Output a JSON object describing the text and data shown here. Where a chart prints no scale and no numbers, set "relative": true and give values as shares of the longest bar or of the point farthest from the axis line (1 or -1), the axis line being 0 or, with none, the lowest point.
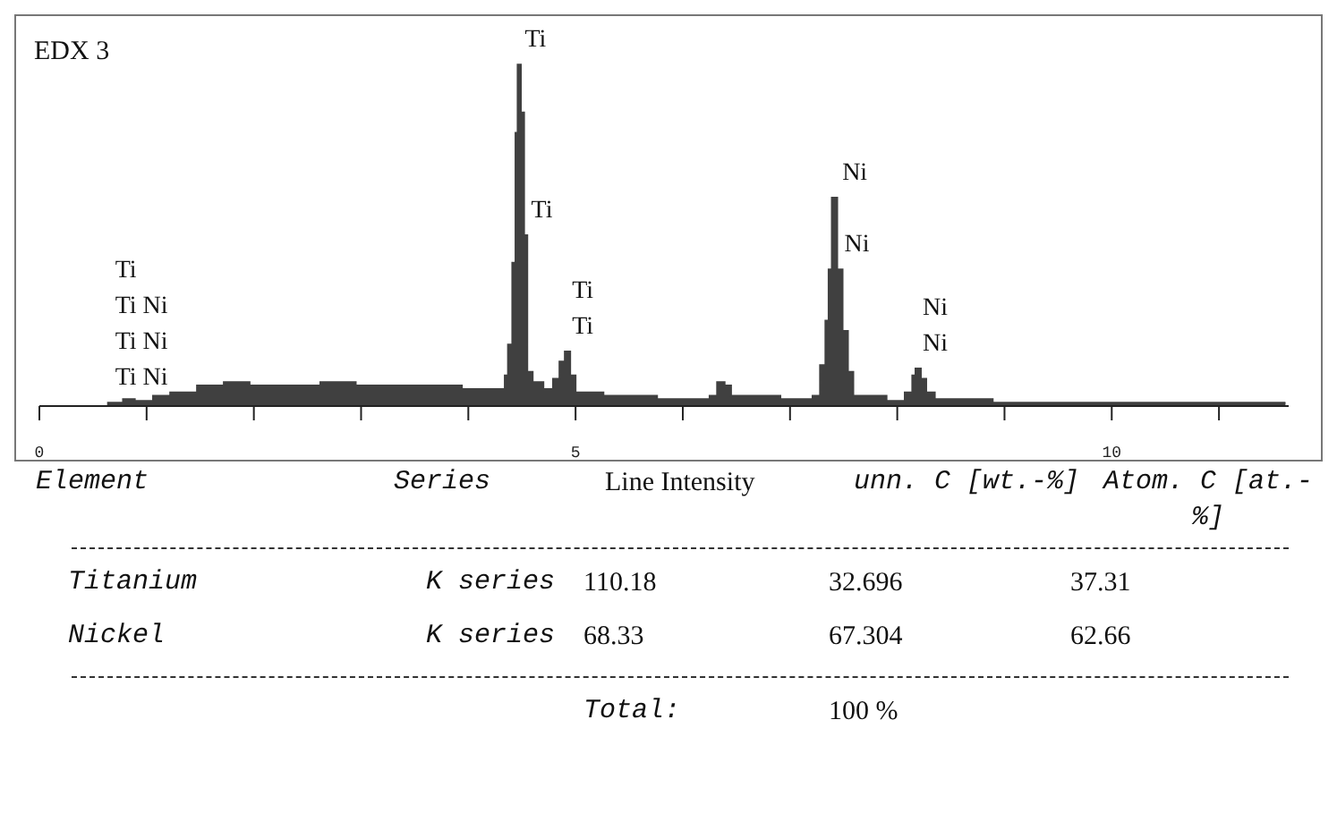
{
  "chart_data": [
    {
      "type": "area",
      "title": "EDX 3",
      "relative": true,
      "tick_labels": "x",
      "grid": false,
      "x": [
        0,
        0.64,
        0.78,
        0.89,
        1.06,
        1.22,
        1.47,
        1.72,
        1.96,
        2.29,
        2.62,
        2.95,
        3.28,
        3.61,
        3.94,
        4.27,
        4.34,
        4.37,
        4.41,
        4.44,
        4.46,
        4.49,
        4.52,
        4.55,
        4.6,
        4.7,
        4.79,
        4.85,
        4.9,
        4.95,
        5,
        5.26,
        5.76,
        6.09,
        6.25,
        6.32,
        6.39,
        6.45,
        6.91,
        7.21,
        7.28,
        7.33,
        7.36,
        7.39,
        7.42,
        7.44,
        7.49,
        7.54,
        7.59,
        7.9,
        8.07,
        8.14,
        8.17,
        8.22,
        8.27,
        8.35,
        8.89,
        9.88,
        11.2,
        11.62
      ],
      "series": [
        {
          "color": "#404040",
          "values": [
            0,
            0.01,
            0.02,
            0.015,
            0.03,
            0.04,
            0.06,
            0.07,
            0.06,
            0.06,
            0.07,
            0.06,
            0.06,
            0.06,
            0.05,
            0.05,
            0.09,
            0.18,
            0.42,
            0.8,
            1,
            0.86,
            0.5,
            0.1,
            0.07,
            0.05,
            0.08,
            0.13,
            0.16,
            0.09,
            0.04,
            0.03,
            0.02,
            0.02,
            0.03,
            0.07,
            0.06,
            0.03,
            0.02,
            0.03,
            0.12,
            0.25,
            0.4,
            0.61,
            0.61,
            0.4,
            0.22,
            0.1,
            0.03,
            0.015,
            0.04,
            0.09,
            0.11,
            0.08,
            0.04,
            0.02,
            0.01,
            0.01,
            0.01,
            0.01
          ]
        }
      ],
      "xlim": [
        0,
        11.65
      ],
      "xticks": [
        0,
        {
          "value": 1,
          "label": null
        },
        {
          "value": 2,
          "label": null
        },
        {
          "value": 3,
          "label": null
        },
        {
          "value": 4,
          "label": null
        },
        5,
        {
          "value": 6,
          "label": null
        },
        {
          "value": 7,
          "label": null
        },
        {
          "value": 8,
          "label": null
        },
        {
          "value": 9,
          "label": null
        },
        10,
        {
          "value": 11,
          "label": null
        }
      ],
      "annotations": [
        {
          "text": "Ti Ni",
          "x": 0.64,
          "y": 0.01
        },
        "Ti Ni",
        "Ti Ni",
        "Ti",
        {
          "text": "Ti",
          "x": 4.46,
          "y": 1
        },
        {
          "text": "Ti",
          "x": 4.52,
          "y": 0.5
        },
        {
          "text": "Ti",
          "x": 4.9,
          "y": 0.16
        },
        "Ti",
        {
          "text": "Ni",
          "x": 7.42,
          "y": 0.61
        },
        {
          "text": "Ni",
          "x": 7.44,
          "y": 0.4
        },
        {
          "text": "Ni",
          "x": 8.17,
          "y": 0.11
        },
        "Ni"
      ]
    },
    {
      "type": "other",
      "annotations": [
        "Element",
        "Series",
        "Line Intensity",
        "unn. C [wt.-%]",
        "Atom. C [at.-%]",
        "Titanium",
        "K series",
        "110.18",
        "32.696",
        "37.31",
        "Nickel",
        "K series",
        "68.33",
        "67.304",
        "62.66",
        "Total:",
        "100 %"
      ]
    }
  ]
}
